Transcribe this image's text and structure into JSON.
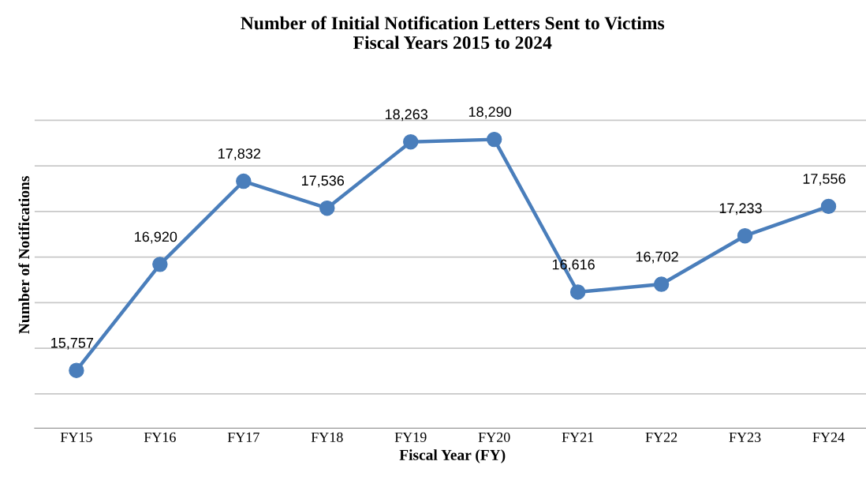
{
  "chart_data": {
    "type": "line",
    "title": "Number of Initial Notification Letters Sent to Victims\nFiscal Years 2015 to 2024",
    "xlabel": "Fiscal Year (FY)",
    "ylabel": "Number of Notifications",
    "categories": [
      "FY15",
      "FY16",
      "FY17",
      "FY18",
      "FY19",
      "FY20",
      "FY21",
      "FY22",
      "FY23",
      "FY24"
    ],
    "series": [
      {
        "color": "#4a7ebb",
        "values": [
          15757,
          16920,
          17832,
          17536,
          18263,
          18290,
          16616,
          16702,
          17233,
          17556
        ],
        "value_labels": [
          "15,757",
          "16,920",
          "17,832",
          "17,536",
          "18,263",
          "18,290",
          "16,616",
          "16,702",
          "17,233",
          "17,556"
        ]
      }
    ],
    "grid": "y",
    "tick_labels": "x",
    "marker": "circle",
    "line_style": "solid",
    "legend": false
  }
}
